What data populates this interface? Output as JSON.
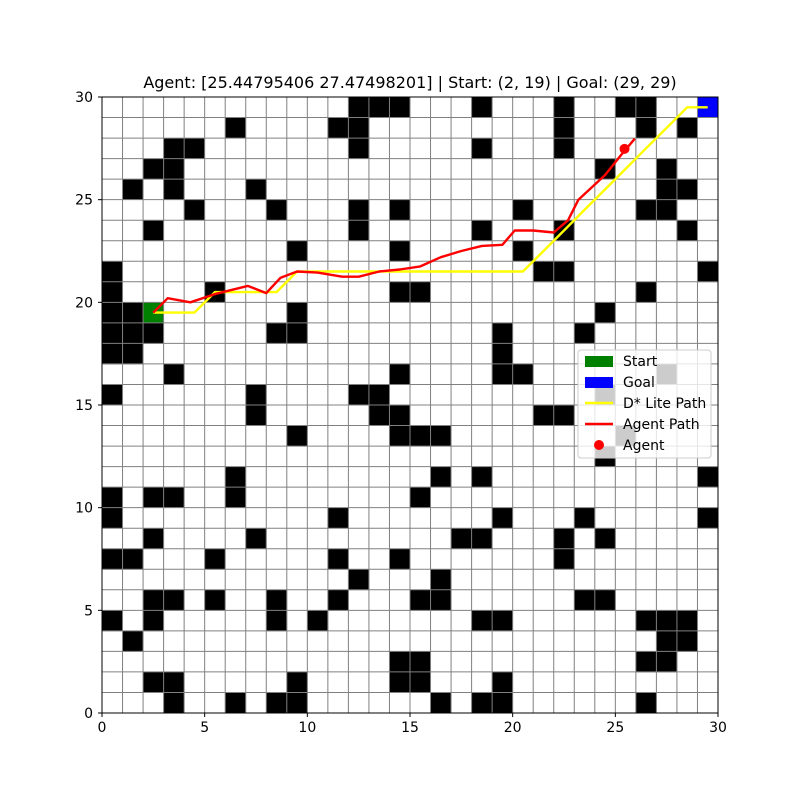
{
  "title": "Agent: [25.44795406 27.47498201] | Start: (2, 19) | Goal: (29, 29)",
  "colors": {
    "obstacle": "#000000",
    "free": "#ffffff",
    "grid_line": "#808080",
    "start": "#008000",
    "goal": "#0000ff",
    "dstar_path": "#ffff00",
    "agent_path": "#ff0000",
    "agent": "#ff0000"
  },
  "legend": {
    "placement": "center-right",
    "entries": [
      {
        "label": "Start",
        "kind": "patch",
        "color": "#008000"
      },
      {
        "label": "Goal",
        "kind": "patch",
        "color": "#0000ff"
      },
      {
        "label": "D* Lite Path",
        "kind": "line",
        "color": "#ffff00"
      },
      {
        "label": "Agent Path",
        "kind": "line",
        "color": "#ff0000"
      },
      {
        "label": "Agent",
        "kind": "marker",
        "color": "#ff0000"
      }
    ]
  },
  "chart_data": {
    "type": "heatmap",
    "title": "Agent: [25.44795406 27.47498201] | Start: (2, 19) | Goal: (29, 29)",
    "xlim": [
      0,
      30
    ],
    "ylim": [
      0,
      30
    ],
    "xticks": [
      0,
      5,
      10,
      15,
      20,
      25,
      30
    ],
    "yticks": [
      0,
      5,
      10,
      15,
      20,
      25,
      30
    ],
    "grid": true,
    "start": [
      2,
      19
    ],
    "goal": [
      29,
      29
    ],
    "agent": [
      25.44795406,
      27.47498201
    ],
    "obstacles_top_row_first": [
      "............###...#...#..##...",
      "......#....##.........#...#.#.",
      "...##.......#.....#...#.......",
      "..##....................#..#..",
      ".#.#...#...................##.",
      "....#...#...#.#.....#.....##..",
      "..#.........#.....#...#.....#.",
      ".........#....#.....#.........",
      "#....................##......#",
      "#....#........##..........#...",
      "##.......#..............#.....",
      "###.....##.........#...#......",
      "##.................#..........",
      "...#..........#....##......#..",
      "#......#....##..........#.....",
      ".......#.....##......##.......",
      ".........#....###........#....",
      "........................#.....",
      "......#.........#.#..........#",
      "#.##..#........#..............",
      "#..........#.......#...#.....#",
      "..#....#.........##...#.#.....",
      "##...#.....#..#.......#.......",
      "............#...#.............",
      "..##.#..#..#...##......##.....",
      "#.#.....#.#.......##......###.",
      ".#.........................##.",
      "..............##..........##..",
      "..##.....#....##...#..........",
      "...#..#.##......#.##......#..."
    ],
    "series": [
      {
        "name": "D* Lite Path",
        "color": "#ffff00",
        "points": [
          [
            2,
            19
          ],
          [
            3,
            19
          ],
          [
            4,
            19
          ],
          [
            5,
            20
          ],
          [
            6,
            20
          ],
          [
            7,
            20
          ],
          [
            8,
            20
          ],
          [
            9,
            21
          ],
          [
            10,
            21
          ],
          [
            11,
            21
          ],
          [
            12,
            21
          ],
          [
            13,
            21
          ],
          [
            14,
            21
          ],
          [
            15,
            21
          ],
          [
            16,
            21
          ],
          [
            17,
            21
          ],
          [
            18,
            21
          ],
          [
            19,
            21
          ],
          [
            20,
            21
          ],
          [
            21,
            22
          ],
          [
            22,
            23
          ],
          [
            23,
            24
          ],
          [
            24,
            25
          ],
          [
            25,
            26
          ],
          [
            26,
            27
          ],
          [
            27,
            28
          ],
          [
            28,
            29
          ],
          [
            29,
            29
          ]
        ]
      },
      {
        "name": "Agent Path",
        "color": "#ff0000",
        "points": [
          [
            2,
            19
          ],
          [
            2.7,
            19.7
          ],
          [
            3.8,
            19.5
          ],
          [
            5,
            19.9
          ],
          [
            6.6,
            20.3
          ],
          [
            7.5,
            19.95
          ],
          [
            8.2,
            20.7
          ],
          [
            9,
            21
          ],
          [
            10,
            20.95
          ],
          [
            11.2,
            20.75
          ],
          [
            12,
            20.75
          ],
          [
            13,
            21.0
          ],
          [
            14,
            21.1
          ],
          [
            15.0,
            21.25
          ],
          [
            16.0,
            21.7
          ],
          [
            17,
            22.0
          ],
          [
            18,
            22.25
          ],
          [
            19,
            22.3
          ],
          [
            19.6,
            23
          ],
          [
            20.5,
            23
          ],
          [
            21.5,
            22.9
          ],
          [
            22.2,
            23.5
          ],
          [
            22.7,
            24.5
          ],
          [
            24.0,
            25.7
          ],
          [
            24.8,
            26.7
          ],
          [
            25.45,
            27.47
          ]
        ]
      }
    ]
  }
}
